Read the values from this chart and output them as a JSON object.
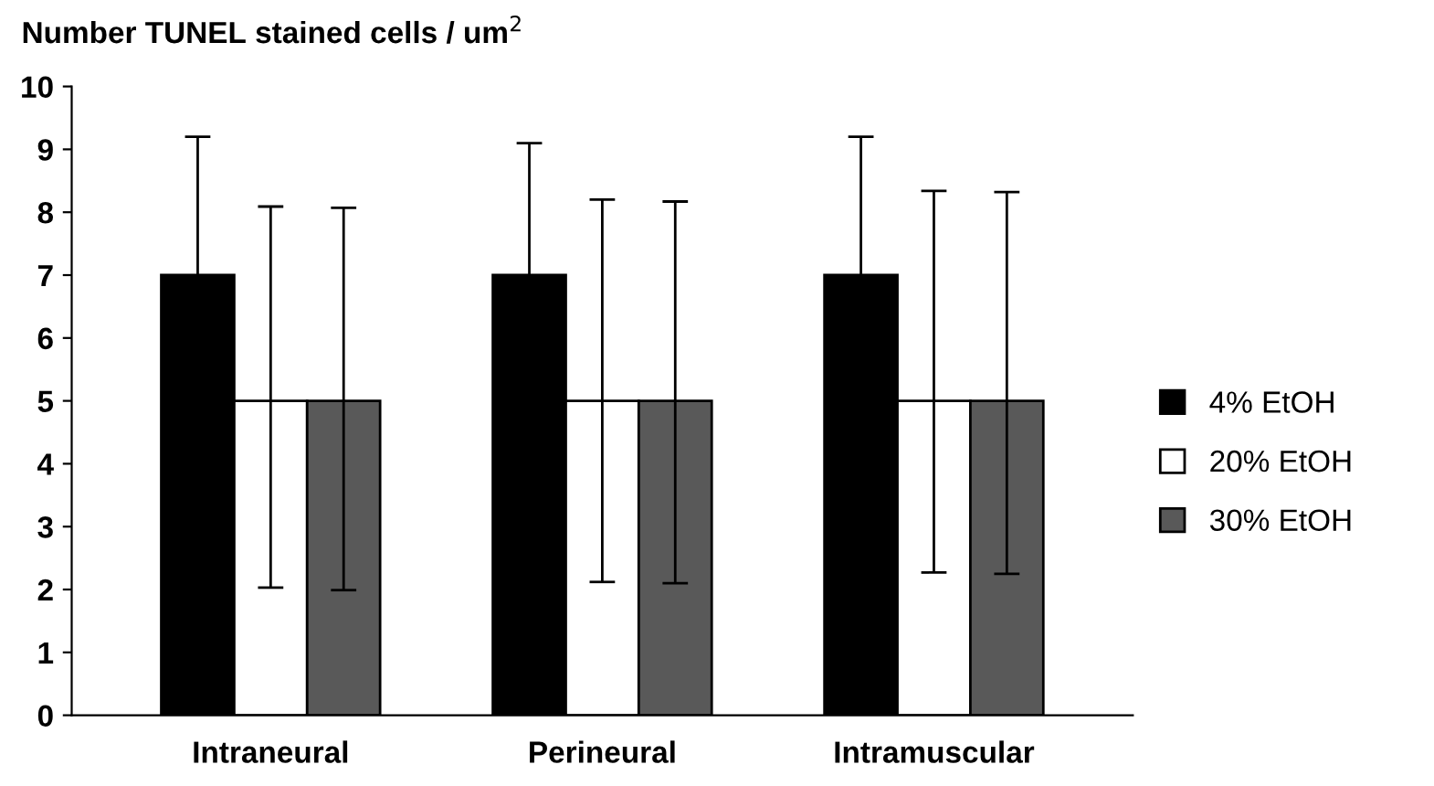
{
  "chart_data": {
    "type": "bar",
    "ylabel": "Number TUNEL stained cells / um$^{2}$",
    "categories": [
      "Intraneural",
      "Perineural",
      "Intramuscular"
    ],
    "series": [
      {
        "name": "4% EtOH",
        "color": "#000000",
        "values": [
          7,
          7,
          7
        ],
        "errors": [
          2.2,
          2.1,
          2.2
        ]
      },
      {
        "name": "20% EtOH",
        "color": "#ffffff",
        "values": [
          5,
          5,
          5
        ],
        "errors": [
          [
            2.03,
            8.09
          ],
          [
            2.12,
            8.2
          ],
          [
            2.27,
            8.34
          ]
        ]
      },
      {
        "name": "30% EtOH",
        "color": "#595959",
        "values": [
          5,
          5,
          5
        ],
        "errors": [
          [
            1.99,
            8.07
          ],
          [
            2.1,
            8.17
          ],
          [
            2.25,
            8.32
          ]
        ]
      }
    ],
    "ylim": [
      0,
      10
    ],
    "yticks": [
      0,
      1,
      2,
      3,
      4,
      5,
      6,
      7,
      8,
      9,
      10
    ],
    "grid": false,
    "legend": "right"
  }
}
